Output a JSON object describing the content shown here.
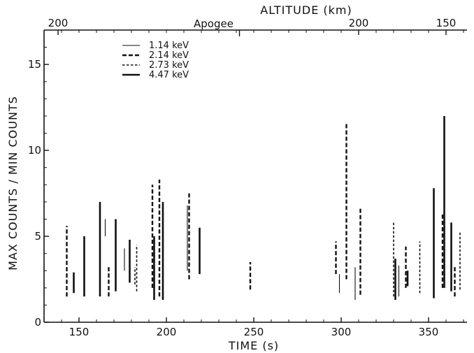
{
  "chart_data": {
    "type": "bar",
    "subtype": "vertical range lines",
    "xlabel": "TIME (s)",
    "ylabel": "MAX COUNTS / MIN COUNTS",
    "top_axis": {
      "label": "ALTITUDE (km)",
      "tick_labels": [
        {
          "text": "200",
          "time": 138
        },
        {
          "text": "200",
          "time": 310
        },
        {
          "text": "150",
          "time": 360
        }
      ],
      "annotation": {
        "text": "Apogee",
        "time": 227
      }
    },
    "xlim": [
      130,
      372
    ],
    "ylim": [
      0,
      17
    ],
    "x_ticks": [
      150,
      200,
      250,
      300,
      350
    ],
    "y_ticks": [
      0,
      5,
      10,
      15
    ],
    "y_tick_labels": [
      "0",
      "5",
      "10",
      "15"
    ],
    "legend_position": "top-left",
    "series": [
      {
        "name": "1.14 keV",
        "style": "thin solid",
        "segments": [
          [
            165,
            5.0,
            6.0
          ],
          [
            176,
            3.0,
            4.3
          ],
          [
            212,
            3.0,
            6.8
          ],
          [
            299,
            1.7,
            2.8
          ],
          [
            308,
            1.3,
            3.2
          ],
          [
            333,
            1.5,
            3.3
          ]
        ]
      },
      {
        "name": "2.14 keV",
        "style": "dashed",
        "segments": [
          [
            143,
            1.5,
            5.6
          ],
          [
            167,
            1.5,
            3.3
          ],
          [
            192,
            2.0,
            8.0
          ],
          [
            196,
            1.5,
            8.3
          ],
          [
            213,
            2.5,
            7.5
          ],
          [
            248,
            1.9,
            3.5
          ],
          [
            297,
            2.8,
            4.7
          ],
          [
            303,
            2.5,
            11.6
          ],
          [
            311,
            1.6,
            6.7
          ],
          [
            337,
            2.0,
            4.4
          ],
          [
            358,
            2.0,
            6.3
          ],
          [
            365,
            1.5,
            3.3
          ]
        ]
      },
      {
        "name": "2.73 keV",
        "style": "short dashed",
        "segments": [
          [
            171,
            2.5,
            4.4
          ],
          [
            183,
            1.8,
            4.5
          ],
          [
            182,
            2.2,
            3.2
          ],
          [
            330,
            1.5,
            5.8
          ],
          [
            345,
            1.7,
            4.7
          ],
          [
            368,
            1.9,
            5.3
          ]
        ]
      },
      {
        "name": "4.47 keV",
        "style": "thick solid",
        "segments": [
          [
            147,
            1.7,
            2.9
          ],
          [
            153,
            1.5,
            5.0
          ],
          [
            162,
            1.5,
            7.0
          ],
          [
            171,
            1.8,
            6.0
          ],
          [
            179,
            2.3,
            4.8
          ],
          [
            193,
            1.3,
            5.0
          ],
          [
            198,
            1.3,
            7.0
          ],
          [
            219,
            2.8,
            5.5
          ],
          [
            331,
            1.3,
            3.7
          ],
          [
            338,
            2.1,
            3.0
          ],
          [
            353,
            1.4,
            7.8
          ],
          [
            359,
            2.0,
            12.0
          ],
          [
            363,
            1.8,
            5.8
          ]
        ]
      }
    ]
  }
}
